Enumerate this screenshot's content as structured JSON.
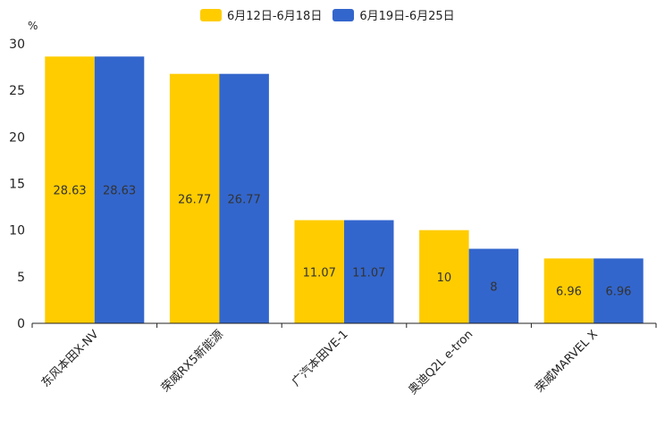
{
  "chart_data": {
    "type": "bar",
    "title": "",
    "xlabel": "",
    "ylabel": "%",
    "ylim": [
      0,
      30
    ],
    "yticks": [
      0,
      5,
      10,
      15,
      20,
      25,
      30
    ],
    "categories": [
      "东风本田X-NV",
      "荣威RX5新能源",
      "广汽本田VE-1",
      "奥迪Q2L e-tron",
      "荣威MARVEL X"
    ],
    "series": [
      {
        "name": "6月12日-6月18日",
        "color": "#FFCC00",
        "values": [
          28.63,
          26.77,
          11.07,
          10,
          6.96
        ],
        "labels": [
          "28.63",
          "26.77",
          "11.07",
          "10",
          "6.96"
        ]
      },
      {
        "name": "6月19日-6月25日",
        "color": "#3366CC",
        "values": [
          28.63,
          26.77,
          11.07,
          8,
          6.96
        ],
        "labels": [
          "28.63",
          "26.77",
          "11.07",
          "8",
          "6.96"
        ]
      }
    ],
    "legend_position": "top-center",
    "grid": false
  }
}
